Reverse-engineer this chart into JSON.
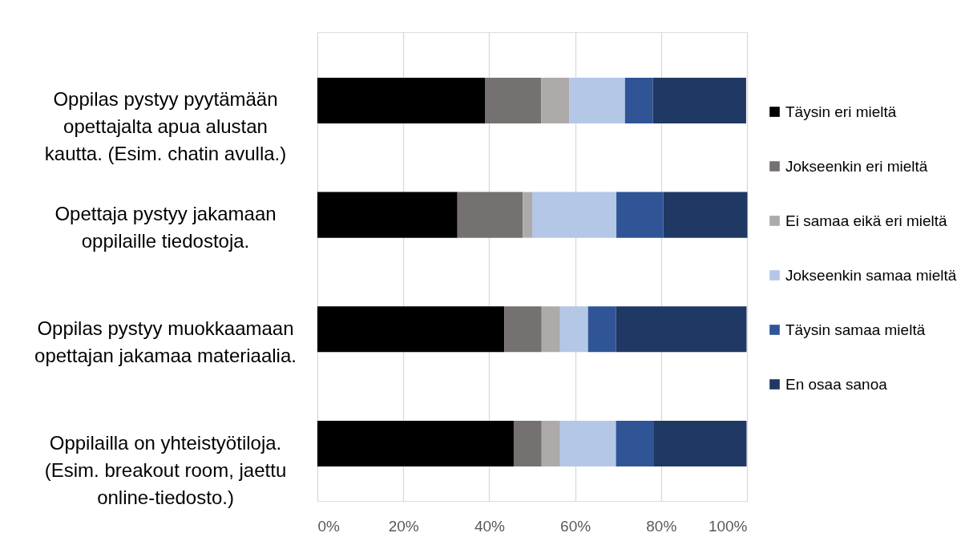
{
  "chart_data": {
    "type": "bar",
    "orientation": "horizontal",
    "stacked": true,
    "categories": [
      "Oppilas pystyy pyytämään\nopettajalta apua alustan\nkautta. (Esim. chatin avulla.)",
      "Opettaja pystyy jakamaan\noppilaille tiedostoja.",
      "Oppilas pystyy muokkaamaan\nopettajan jakamaa materiaalia.",
      "Oppilailla on yhteistyötiloja.\n(Esim. breakout room, jaettu\nonline-tiedosto.)"
    ],
    "series": [
      {
        "name": "Täysin eri mieltä",
        "color": "#000000",
        "values": [
          39.1,
          32.6,
          43.5,
          45.7
        ]
      },
      {
        "name": "Jokseenkin eri mieltä",
        "color": "#767171",
        "values": [
          13.0,
          15.2,
          8.7,
          6.5
        ]
      },
      {
        "name": "Ei samaa eikä eri mieltä",
        "color": "#aeaaaa",
        "values": [
          6.5,
          2.2,
          4.3,
          4.3
        ]
      },
      {
        "name": "Jokseenkin samaa mieltä",
        "color": "#b4c7e7",
        "values": [
          13.0,
          19.6,
          6.5,
          13.0
        ]
      },
      {
        "name": "Täysin samaa mieltä",
        "color": "#2f5597",
        "values": [
          6.5,
          10.9,
          6.5,
          8.7
        ]
      },
      {
        "name": "En osaa sanoa",
        "color": "#203864",
        "values": [
          21.7,
          19.6,
          30.4,
          21.7
        ]
      }
    ],
    "xlim": [
      0,
      100
    ],
    "xticks": [
      {
        "value": 0,
        "label": "0%"
      },
      {
        "value": 20,
        "label": "20%"
      },
      {
        "value": 40,
        "label": "40%"
      },
      {
        "value": 60,
        "label": "60%"
      },
      {
        "value": 80,
        "label": "80%"
      },
      {
        "value": 100,
        "label": "100%"
      }
    ],
    "grid": "x",
    "legend": "right"
  }
}
